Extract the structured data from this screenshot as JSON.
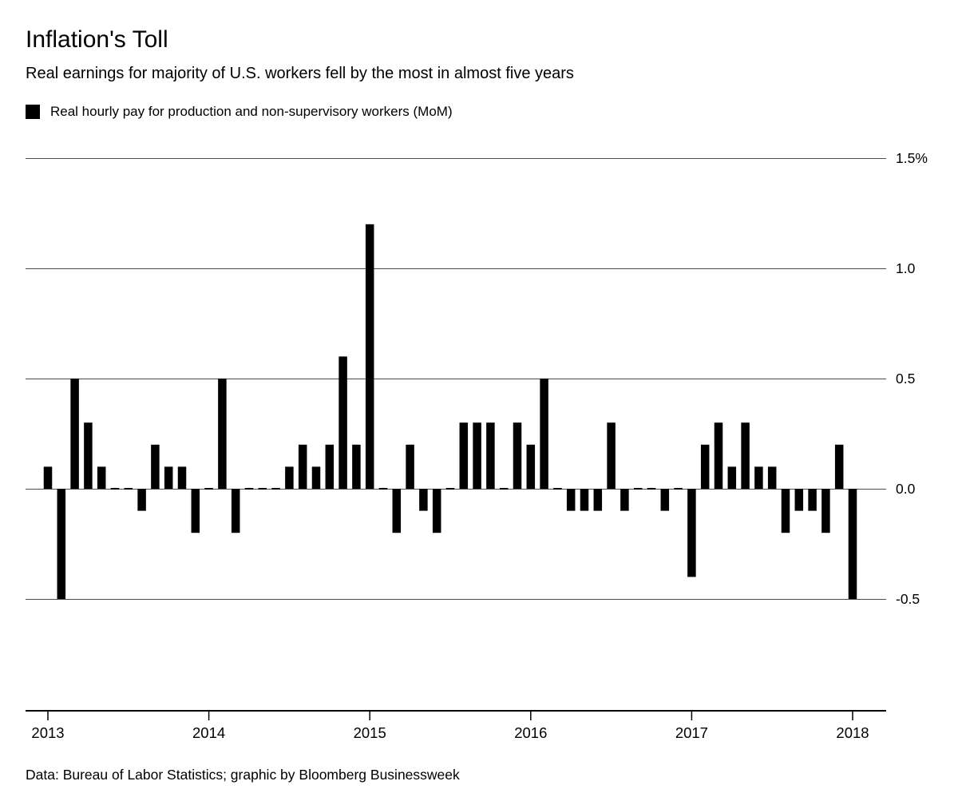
{
  "header": {
    "title": "Inflation's Toll",
    "subtitle": "Real earnings for majority of U.S. workers fell by the most in almost five years"
  },
  "legend": {
    "label": "Real hourly pay for production and non-supervisory workers (MoM)",
    "swatch_color": "#000000"
  },
  "footer": {
    "source": "Data: Bureau of Labor Statistics; graphic by Bloomberg Businessweek"
  },
  "chart_data": {
    "type": "bar",
    "title": "Inflation's Toll",
    "subtitle": "Real earnings for majority of U.S. workers fell by the most in almost five years",
    "series_name": "Real hourly pay for production and non-supervisory workers (MoM)",
    "unit": "percent, month-over-month",
    "x": [
      "2013-01",
      "2013-02",
      "2013-03",
      "2013-04",
      "2013-05",
      "2013-06",
      "2013-07",
      "2013-08",
      "2013-09",
      "2013-10",
      "2013-11",
      "2013-12",
      "2014-01",
      "2014-02",
      "2014-03",
      "2014-04",
      "2014-05",
      "2014-06",
      "2014-07",
      "2014-08",
      "2014-09",
      "2014-10",
      "2014-11",
      "2014-12",
      "2015-01",
      "2015-02",
      "2015-03",
      "2015-04",
      "2015-05",
      "2015-06",
      "2015-07",
      "2015-08",
      "2015-09",
      "2015-10",
      "2015-11",
      "2015-12",
      "2016-01",
      "2016-02",
      "2016-03",
      "2016-04",
      "2016-05",
      "2016-06",
      "2016-07",
      "2016-08",
      "2016-09",
      "2016-10",
      "2016-11",
      "2016-12",
      "2017-01",
      "2017-02",
      "2017-03",
      "2017-04",
      "2017-05",
      "2017-06",
      "2017-07",
      "2017-08",
      "2017-09",
      "2017-10",
      "2017-11",
      "2017-12",
      "2018-01"
    ],
    "values": [
      0.1,
      -0.5,
      0.5,
      0.3,
      0.1,
      0,
      0,
      -0.1,
      0.2,
      0.1,
      0.1,
      -0.2,
      0,
      0.5,
      -0.2,
      0,
      0,
      0,
      0.1,
      0.2,
      0.1,
      0.2,
      0.6,
      0.2,
      1.2,
      0,
      -0.2,
      0.2,
      -0.1,
      -0.2,
      0,
      0.3,
      0.3,
      0.3,
      0,
      0.3,
      0.2,
      0.5,
      0,
      -0.1,
      -0.1,
      -0.1,
      0.3,
      -0.1,
      0,
      0,
      -0.1,
      0,
      -0.4,
      0.2,
      0.3,
      0.1,
      0.3,
      0.1,
      0.1,
      -0.2,
      -0.1,
      -0.1,
      -0.2,
      0.2,
      -0.5
    ],
    "ylim": [
      -0.5,
      1.5
    ],
    "yticks": [
      {
        "value": 1.5,
        "label": "1.5%"
      },
      {
        "value": 1.0,
        "label": "1.0"
      },
      {
        "value": 0.5,
        "label": "0.5"
      },
      {
        "value": 0.0,
        "label": "0.0"
      },
      {
        "value": -0.5,
        "label": "-0.5"
      }
    ],
    "xticks": [
      "2013",
      "2014",
      "2015",
      "2016",
      "2017",
      "2018"
    ],
    "grid": true,
    "legend_position": "top-left",
    "ylabel_position": "right",
    "bar_color": "#000000",
    "grid_color": "#4d4d4d",
    "axis_color": "#000000"
  }
}
